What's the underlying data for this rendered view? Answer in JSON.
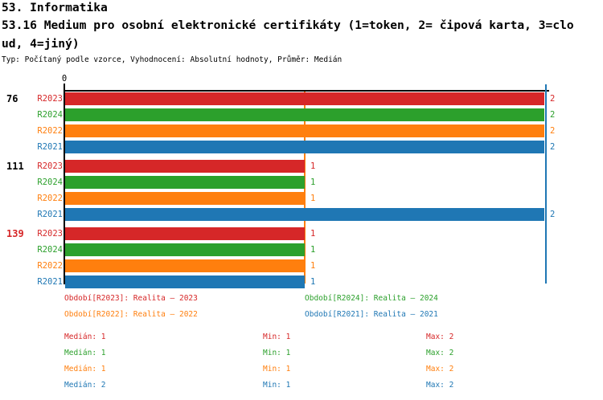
{
  "header": {
    "section": "53. Informatika",
    "title_lines": [
      "53.16 Medium pro osobní elektronické certifikáty (1=token, 2= čipová karta, 3=clo",
      "ud, 4=jiný)"
    ],
    "meta": "Typ: Počítaný podle vzorce, Vyhodnocení: Absolutní hodnoty, Průměr: Medián"
  },
  "colors": {
    "r2023": "#d62728",
    "r2024": "#2ca02c",
    "r2022": "#ff7f0e",
    "r2021": "#1f77b4",
    "axis": "#000000"
  },
  "chart_data": {
    "type": "bar",
    "orientation": "horizontal",
    "xlim": [
      0,
      2
    ],
    "x_tick_labels": [
      "0"
    ],
    "grid": false,
    "series_order": [
      "R2023",
      "R2024",
      "R2022",
      "R2021"
    ],
    "series_colors": {
      "R2023": "#d62728",
      "R2024": "#2ca02c",
      "R2022": "#ff7f0e",
      "R2021": "#1f77b4"
    },
    "reference_lines": [
      {
        "value": 1,
        "color": "#ff7f0e"
      },
      {
        "value": 2,
        "color": "#1f77b4"
      }
    ],
    "groups": [
      {
        "label": "76",
        "label_color": "#000000",
        "bars": [
          {
            "series": "R2023",
            "value": 2
          },
          {
            "series": "R2024",
            "value": 2
          },
          {
            "series": "R2022",
            "value": 2
          },
          {
            "series": "R2021",
            "value": 2
          }
        ]
      },
      {
        "label": "111",
        "label_color": "#000000",
        "bars": [
          {
            "series": "R2023",
            "value": 1
          },
          {
            "series": "R2024",
            "value": 1
          },
          {
            "series": "R2022",
            "value": 1
          },
          {
            "series": "R2021",
            "value": 2
          }
        ]
      },
      {
        "label": "139",
        "label_color": "#d62728",
        "bars": [
          {
            "series": "R2023",
            "value": 1
          },
          {
            "series": "R2024",
            "value": 1
          },
          {
            "series": "R2022",
            "value": 1
          },
          {
            "series": "R2021",
            "value": 1
          }
        ]
      }
    ]
  },
  "legend": {
    "items": [
      {
        "series": "R2023",
        "label": "Období[R2023]: Realita – 2023",
        "color": "#d62728"
      },
      {
        "series": "R2024",
        "label": "Období[R2024]: Realita – 2024",
        "color": "#2ca02c"
      },
      {
        "series": "R2022",
        "label": "Období[R2022]: Realita – 2022",
        "color": "#ff7f0e"
      },
      {
        "series": "R2021",
        "label": "Období[R2021]: Realita – 2021",
        "color": "#1f77b4"
      }
    ]
  },
  "stats": {
    "rows": [
      {
        "series": "R2023",
        "median": "Medián: 1",
        "min": "Min: 1",
        "max": "Max: 2",
        "color": "#d62728"
      },
      {
        "series": "R2024",
        "median": "Medián: 1",
        "min": "Min: 1",
        "max": "Max: 2",
        "color": "#2ca02c"
      },
      {
        "series": "R2022",
        "median": "Medián: 1",
        "min": "Min: 1",
        "max": "Max: 2",
        "color": "#ff7f0e"
      },
      {
        "series": "R2021",
        "median": "Medián: 2",
        "min": "Min: 1",
        "max": "Max: 2",
        "color": "#1f77b4"
      }
    ]
  }
}
